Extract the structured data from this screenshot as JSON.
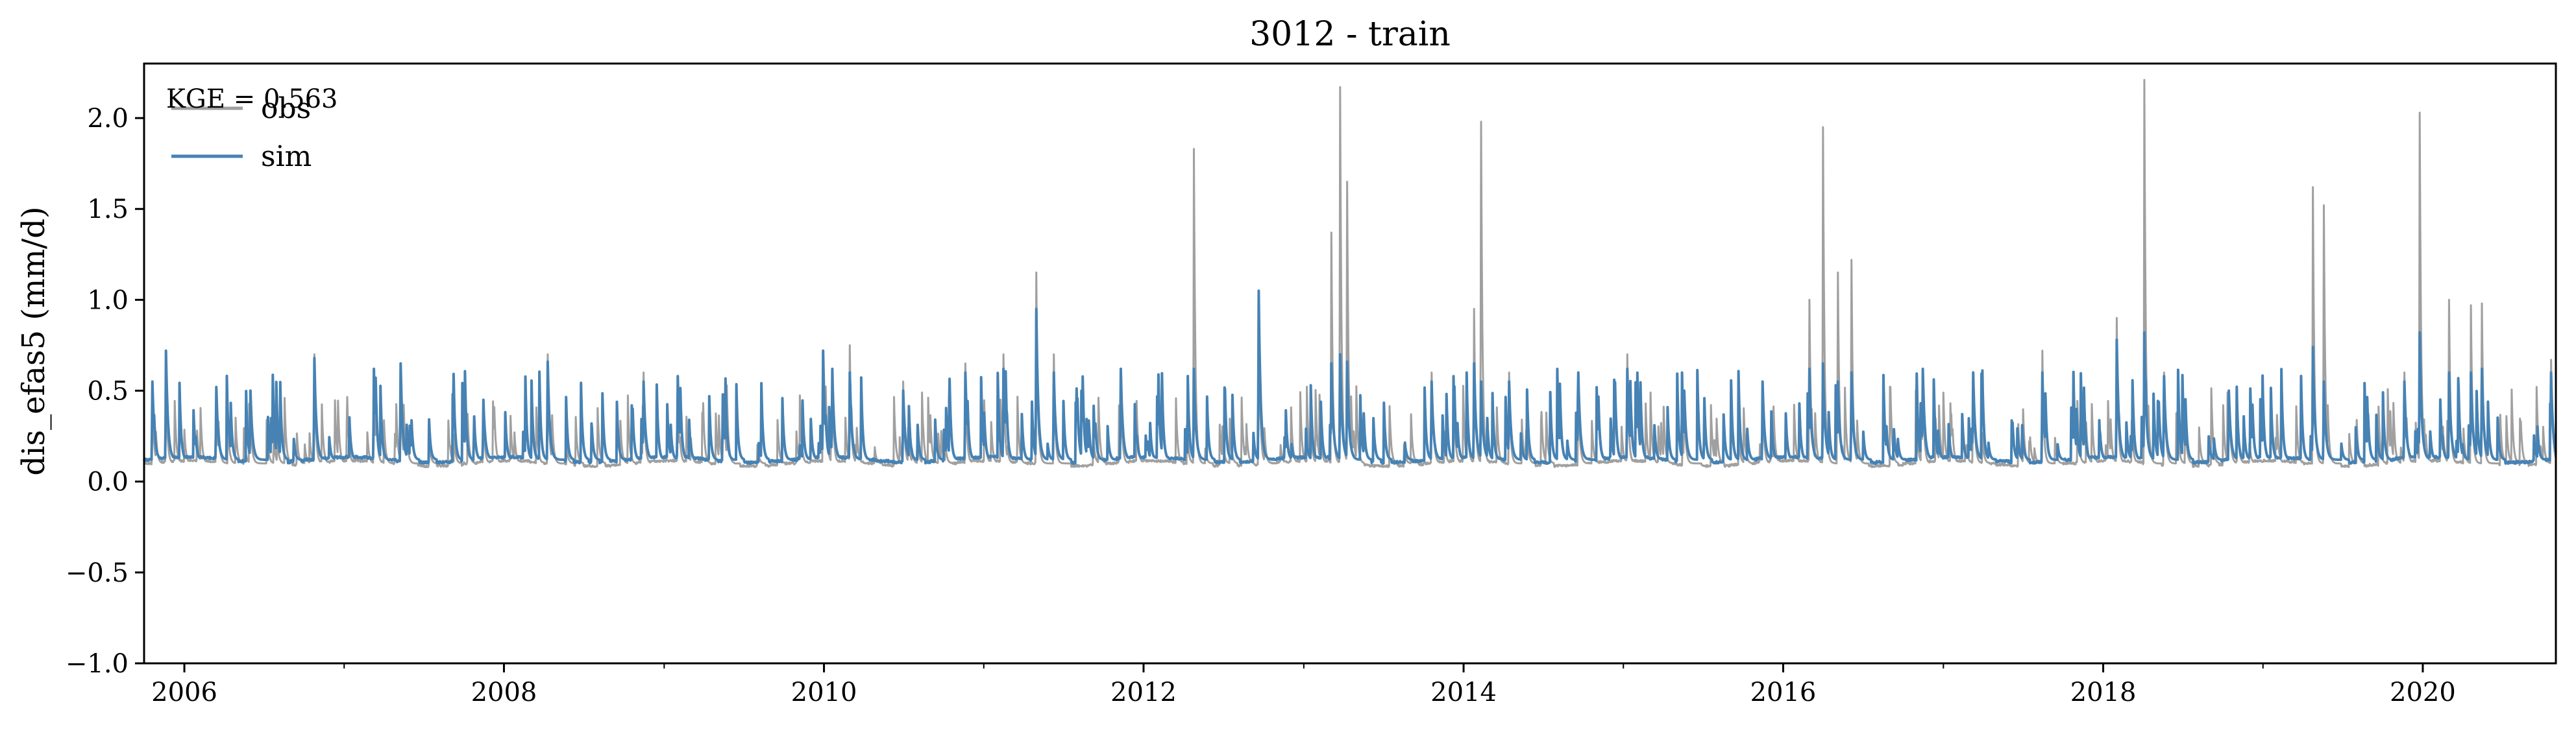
{
  "chart_data": {
    "type": "line",
    "title": "3012 - train",
    "xlabel": "",
    "ylabel": "dis_efas5 (mm/d)",
    "xlim": [
      "2005-10-01",
      "2020-10-31"
    ],
    "ylim": [
      -1.0,
      2.3
    ],
    "yticks": [
      -1.0,
      -0.5,
      0.0,
      0.5,
      1.0,
      1.5,
      2.0
    ],
    "ytick_labels": [
      "−1.0",
      "−0.5",
      "0.0",
      "0.5",
      "1.0",
      "1.5",
      "2.0"
    ],
    "xticks": [
      "2006-01-01",
      "2008-01-01",
      "2010-01-01",
      "2012-01-01",
      "2014-01-01",
      "2016-01-01",
      "2018-01-01",
      "2020-01-01"
    ],
    "xtick_labels": [
      "2006",
      "2008",
      "2010",
      "2012",
      "2014",
      "2016",
      "2018",
      "2020"
    ],
    "grid": false,
    "legend_position": "top-left",
    "annotation": "KGE = 0.563",
    "series": [
      {
        "name": "obs",
        "color": "#a0a0a0",
        "baseline": 0.1,
        "peaks": [
          [
            "2005-10-20",
            0.5
          ],
          [
            "2005-11-20",
            0.6
          ],
          [
            "2006-03-15",
            0.45
          ],
          [
            "2006-06-01",
            0.4
          ],
          [
            "2006-10-25",
            0.7
          ],
          [
            "2007-03-10",
            0.5
          ],
          [
            "2007-05-10",
            0.6
          ],
          [
            "2007-11-15",
            0.4
          ],
          [
            "2008-04-10",
            0.7
          ],
          [
            "2008-11-15",
            0.6
          ],
          [
            "2009-02-01",
            0.5
          ],
          [
            "2009-05-15",
            0.45
          ],
          [
            "2009-12-30",
            0.7
          ],
          [
            "2010-01-20",
            0.6
          ],
          [
            "2010-03-01",
            0.75
          ],
          [
            "2010-07-01",
            0.55
          ],
          [
            "2010-11-20",
            0.65
          ],
          [
            "2011-02-15",
            0.7
          ],
          [
            "2011-05-01",
            1.15
          ],
          [
            "2011-06-10",
            0.7
          ],
          [
            "2011-11-10",
            0.6
          ],
          [
            "2012-04-25",
            1.83
          ],
          [
            "2012-09-20",
            1.05
          ],
          [
            "2013-03-05",
            1.37
          ],
          [
            "2013-03-25",
            2.17
          ],
          [
            "2013-04-10",
            1.65
          ],
          [
            "2013-10-20",
            0.6
          ],
          [
            "2014-01-25",
            0.95
          ],
          [
            "2014-02-10",
            1.98
          ],
          [
            "2014-04-15",
            0.6
          ],
          [
            "2014-09-20",
            0.55
          ],
          [
            "2015-01-10",
            0.7
          ],
          [
            "2015-05-20",
            0.5
          ],
          [
            "2015-11-15",
            0.55
          ],
          [
            "2016-03-01",
            1.0
          ],
          [
            "2016-04-01",
            1.95
          ],
          [
            "2016-05-05",
            1.15
          ],
          [
            "2016-06-05",
            1.22
          ],
          [
            "2016-11-15",
            0.6
          ],
          [
            "2017-03-10",
            0.6
          ],
          [
            "2017-08-15",
            0.72
          ],
          [
            "2018-02-01",
            0.9
          ],
          [
            "2018-04-05",
            2.21
          ],
          [
            "2018-05-20",
            0.6
          ],
          [
            "2018-10-15",
            0.5
          ],
          [
            "2019-04-25",
            1.62
          ],
          [
            "2019-05-20",
            1.52
          ],
          [
            "2019-11-20",
            0.6
          ],
          [
            "2019-12-25",
            2.03
          ],
          [
            "2020-03-01",
            1.0
          ],
          [
            "2020-04-20",
            0.97
          ],
          [
            "2020-05-15",
            0.98
          ],
          [
            "2020-10-20",
            0.67
          ]
        ]
      },
      {
        "name": "sim",
        "color": "#4682b4",
        "baseline": 0.12,
        "peaks": [
          [
            "2005-10-20",
            0.55
          ],
          [
            "2005-11-20",
            0.72
          ],
          [
            "2006-03-15",
            0.52
          ],
          [
            "2006-06-01",
            0.5
          ],
          [
            "2006-10-25",
            0.68
          ],
          [
            "2007-03-10",
            0.62
          ],
          [
            "2007-05-10",
            0.65
          ],
          [
            "2007-11-15",
            0.45
          ],
          [
            "2008-04-10",
            0.66
          ],
          [
            "2008-11-15",
            0.55
          ],
          [
            "2009-02-01",
            0.58
          ],
          [
            "2009-05-15",
            0.48
          ],
          [
            "2009-12-30",
            0.72
          ],
          [
            "2010-01-20",
            0.62
          ],
          [
            "2010-03-01",
            0.6
          ],
          [
            "2010-07-01",
            0.5
          ],
          [
            "2010-11-20",
            0.6
          ],
          [
            "2011-02-15",
            0.62
          ],
          [
            "2011-05-01",
            0.95
          ],
          [
            "2011-06-10",
            0.6
          ],
          [
            "2011-11-10",
            0.62
          ],
          [
            "2012-04-25",
            0.62
          ],
          [
            "2012-09-20",
            1.05
          ],
          [
            "2013-03-05",
            0.65
          ],
          [
            "2013-03-25",
            0.7
          ],
          [
            "2013-04-10",
            0.66
          ],
          [
            "2013-10-20",
            0.55
          ],
          [
            "2014-01-25",
            0.65
          ],
          [
            "2014-02-10",
            0.55
          ],
          [
            "2014-04-15",
            0.55
          ],
          [
            "2014-09-20",
            0.6
          ],
          [
            "2015-01-10",
            0.62
          ],
          [
            "2015-05-20",
            0.5
          ],
          [
            "2015-11-15",
            0.55
          ],
          [
            "2016-03-01",
            0.62
          ],
          [
            "2016-04-01",
            0.65
          ],
          [
            "2016-05-05",
            0.55
          ],
          [
            "2016-06-05",
            0.6
          ],
          [
            "2016-11-15",
            0.62
          ],
          [
            "2017-03-10",
            0.6
          ],
          [
            "2017-08-15",
            0.6
          ],
          [
            "2018-02-01",
            0.78
          ],
          [
            "2018-04-05",
            0.82
          ],
          [
            "2018-05-20",
            0.58
          ],
          [
            "2018-10-15",
            0.5
          ],
          [
            "2019-04-25",
            0.74
          ],
          [
            "2019-05-20",
            0.55
          ],
          [
            "2019-11-20",
            0.55
          ],
          [
            "2019-12-25",
            0.82
          ],
          [
            "2020-03-01",
            0.6
          ],
          [
            "2020-04-20",
            0.6
          ],
          [
            "2020-05-15",
            0.62
          ],
          [
            "2020-10-20",
            0.6
          ]
        ]
      }
    ]
  }
}
